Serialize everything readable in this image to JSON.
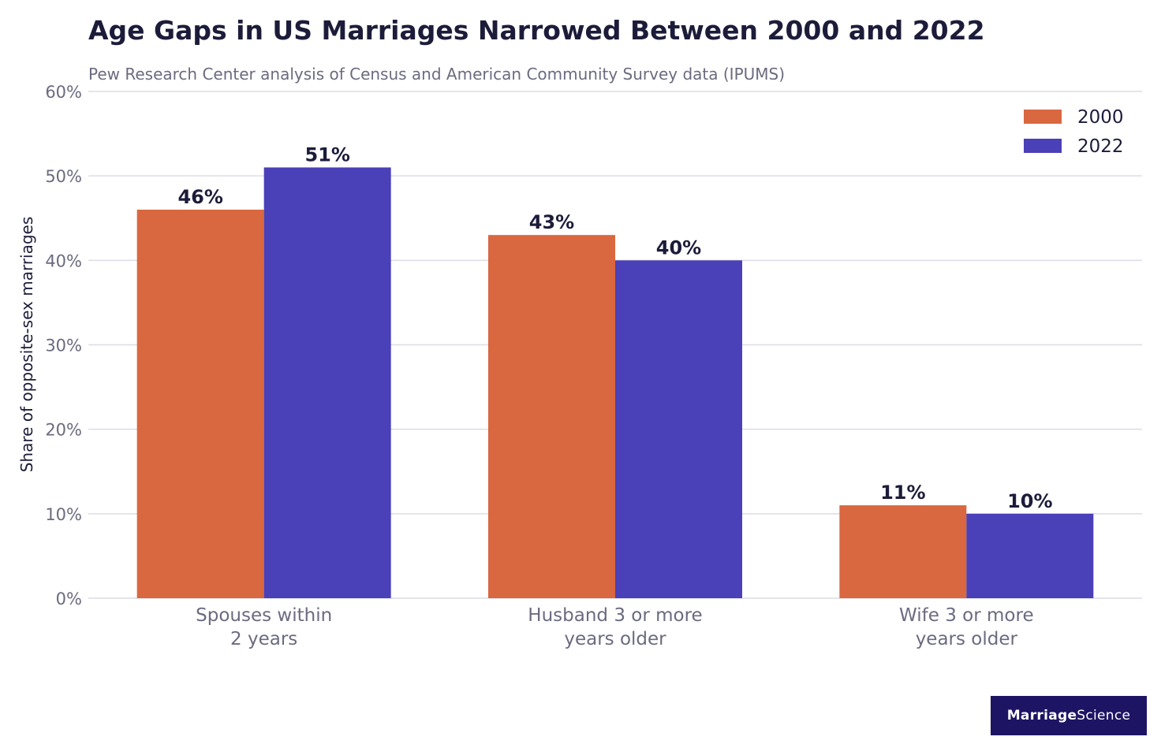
{
  "chart_data": {
    "type": "bar",
    "title": "Age Gaps in US Marriages Narrowed Between 2000 and 2022",
    "subtitle": "Pew Research Center analysis of Census and American Community Survey data (IPUMS)",
    "ylabel": "Share of opposite-sex marriages",
    "xlabel": "",
    "ylim": [
      0,
      60
    ],
    "yticks": [
      {
        "value": 0,
        "label": "0%"
      },
      {
        "value": 10,
        "label": "10%"
      },
      {
        "value": 20,
        "label": "20%"
      },
      {
        "value": 30,
        "label": "30%"
      },
      {
        "value": 40,
        "label": "40%"
      },
      {
        "value": 50,
        "label": "50%"
      },
      {
        "value": 60,
        "label": "60%"
      }
    ],
    "categories": [
      [
        "Spouses within",
        "2 years"
      ],
      [
        "Husband 3 or more",
        "years older"
      ],
      [
        "Wife 3 or more",
        "years older"
      ]
    ],
    "series": [
      {
        "name": "2000",
        "color": "#d9673f",
        "values": [
          46,
          43,
          11
        ],
        "labels": [
          "46%",
          "43%",
          "11%"
        ]
      },
      {
        "name": "2022",
        "color": "#4a40b8",
        "values": [
          51,
          40,
          10
        ],
        "labels": [
          "51%",
          "40%",
          "10%"
        ]
      }
    ],
    "grid": true,
    "legend_position": "top-right"
  },
  "brand": {
    "part1": "Marriage",
    "part2": "Science",
    "background": "#1e1464"
  }
}
